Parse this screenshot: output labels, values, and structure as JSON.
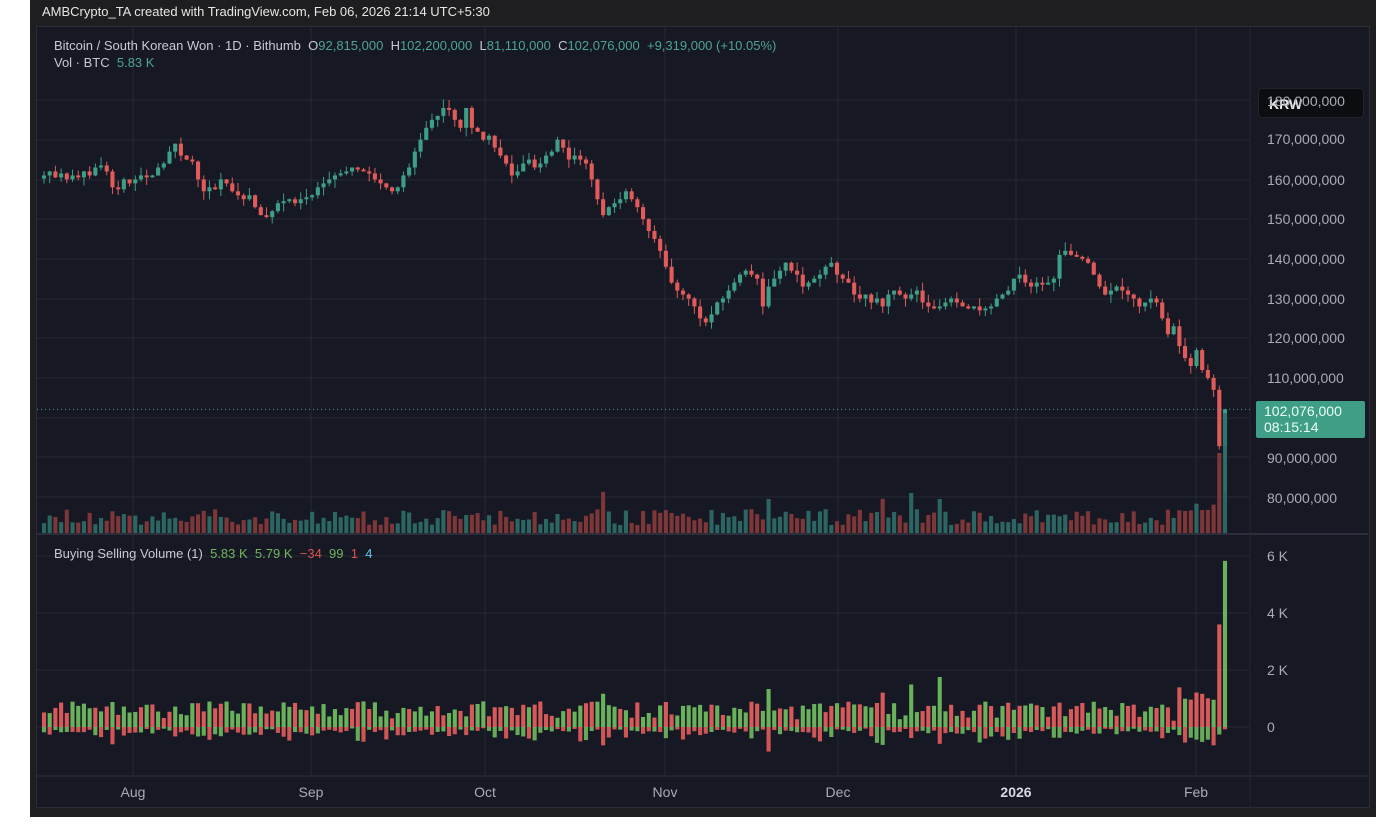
{
  "header": {
    "credit": "AMBCrypto_TA created with TradingView.com, Feb 06, 2026 21:14 UTC+5:30"
  },
  "legend": {
    "symbol": "Bitcoin / South Korean Won · 1D · Bithumb",
    "open_label": "O",
    "open": "92,815,000",
    "high_label": "H",
    "high": "102,200,000",
    "low_label": "L",
    "low": "81,110,000",
    "close_label": "C",
    "close": "102,076,000",
    "change": "+9,319,000 (+10.05%)",
    "vol_label": "Vol · BTC",
    "vol_value": "5.83 K"
  },
  "indicator": {
    "name": "Buying Selling Volume (1)",
    "v1": "5.83 K",
    "v2": "5.79 K",
    "v3": "−34",
    "v4": "99",
    "v5": "1",
    "v6": "4"
  },
  "price_axis": {
    "currency": "KRW",
    "ticks": [
      "180,000,000",
      "170,000,000",
      "160,000,000",
      "150,000,000",
      "140,000,000",
      "130,000,000",
      "120,000,000",
      "110,000,000",
      "90,000,000",
      "80,000,000"
    ],
    "last_price": "102,076,000",
    "countdown": "08:15:14"
  },
  "indicator_axis": {
    "ticks": [
      "6 K",
      "4 K",
      "2 K",
      "0"
    ]
  },
  "time_axis": {
    "labels": [
      "Aug",
      "Sep",
      "Oct",
      "Nov",
      "Dec",
      "2026",
      "Feb"
    ]
  },
  "colors": {
    "up": "#3f9e86",
    "down": "#e25b5b",
    "vol_up": "#2f6f6a",
    "vol_down": "#8a3b3b",
    "buy": "#6fb95f",
    "sell": "#e35d5d",
    "grid": "#262a36",
    "bg": "#161823"
  },
  "chart_data": {
    "type": "candlestick",
    "title": "Bitcoin / South Korean Won · 1D · Bithumb",
    "xlabel": "",
    "ylabel": "KRW",
    "ylim": [
      75000000,
      182000000
    ],
    "x_tick_labels": [
      "Aug",
      "Sep",
      "Oct",
      "Nov",
      "Dec",
      "2026",
      "Feb"
    ],
    "start_date": "2025-07-16",
    "end_date": "2026-02-06",
    "last_candle": {
      "open": 92815000,
      "high": 102200000,
      "low": 81110000,
      "close": 102076000,
      "change": 9319000,
      "change_pct": 10.05
    },
    "closes_millions": [
      161,
      162,
      160.5,
      161.5,
      160,
      161,
      160.5,
      162,
      161,
      163,
      163.5,
      162,
      158,
      157.5,
      160,
      159,
      160,
      161,
      160.5,
      161,
      163,
      164,
      167,
      169,
      166,
      165,
      164.5,
      160,
      157,
      158,
      157.5,
      160,
      159,
      157,
      156,
      155,
      156,
      153,
      151,
      150.5,
      152,
      154,
      154.5,
      155,
      154,
      155,
      155.5,
      156,
      158,
      159,
      160,
      161,
      161.5,
      162,
      163,
      162.5,
      162,
      161.5,
      160,
      159,
      158,
      157,
      158,
      161,
      163,
      167,
      170,
      173,
      175,
      176,
      178,
      177.5,
      175,
      173,
      178,
      173,
      172,
      170,
      171,
      168,
      166,
      164,
      161,
      162,
      164,
      165,
      163,
      164,
      166,
      167,
      170,
      168,
      165,
      166,
      165,
      164,
      160,
      155,
      151,
      153,
      154,
      155,
      157,
      155,
      153,
      150,
      147,
      145,
      142,
      138,
      134,
      132,
      131,
      130,
      128,
      125,
      124,
      126,
      129,
      130,
      132,
      134,
      136,
      137,
      136,
      135,
      128,
      133,
      135,
      137,
      139,
      137,
      136,
      133,
      134,
      135,
      136,
      138,
      139,
      136,
      135,
      134,
      131,
      130,
      131,
      129,
      130,
      128,
      131,
      132,
      131,
      130,
      131,
      132,
      129,
      128,
      127.5,
      128,
      129,
      130,
      129,
      128,
      127.5,
      128,
      127,
      127.5,
      128,
      130,
      131,
      132,
      135,
      136,
      134,
      133,
      134,
      133.5,
      134,
      135,
      141,
      142,
      141,
      140.5,
      140,
      139,
      136,
      133,
      131,
      132,
      133,
      132,
      131,
      130,
      128,
      129,
      130,
      129,
      125,
      121,
      123,
      118,
      115,
      113,
      117,
      112,
      110,
      107,
      92.8,
      102.076
    ],
    "volume_axis": {
      "ylim": [
        -1300,
        6400
      ],
      "ticks": [
        0,
        2000,
        4000,
        6000
      ]
    },
    "buying_selling_last": {
      "buying": 5830,
      "selling": 5790,
      "delta": -34
    }
  }
}
